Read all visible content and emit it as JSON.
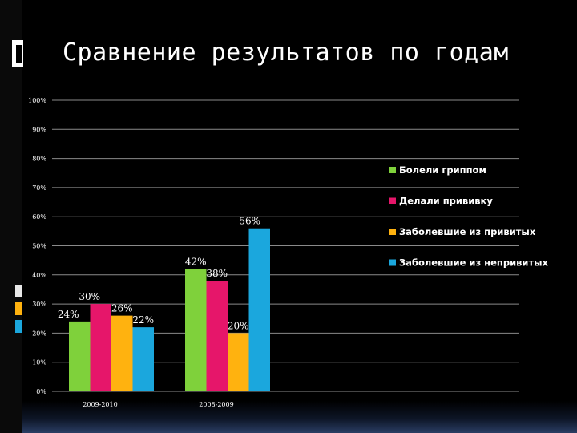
{
  "slide": {
    "title": "Сравнение результатов по годам",
    "colors": {
      "background": "#000000",
      "text": "#ffffff",
      "gridline": "#8a8a8a"
    }
  },
  "chart_data": {
    "type": "bar",
    "categories": [
      "2009-2010",
      "2008-2009"
    ],
    "series": [
      {
        "name": "Болели гриппом",
        "color": "#7fd13b",
        "values": [
          24,
          42
        ],
        "labels": [
          "24%",
          "42%"
        ]
      },
      {
        "name": "Делали прививку",
        "color": "#e6166a",
        "values": [
          30,
          38
        ],
        "labels": [
          "30%",
          "38%"
        ]
      },
      {
        "name": "Заболевшие из привитых",
        "color": "#ffb20f",
        "values": [
          26,
          20
        ],
        "labels": [
          "26%",
          "20%"
        ]
      },
      {
        "name": "Заболевшие из непривитых",
        "color": "#1ba7dd",
        "values": [
          22,
          56
        ],
        "labels": [
          "22%",
          "56%"
        ]
      }
    ],
    "yticks": [
      "0%",
      "10%",
      "20%",
      "30%",
      "40%",
      "50%",
      "60%",
      "70%",
      "80%",
      "90%",
      "100%"
    ],
    "ylim": [
      0,
      100
    ],
    "grid": true,
    "legend_position": "right"
  }
}
